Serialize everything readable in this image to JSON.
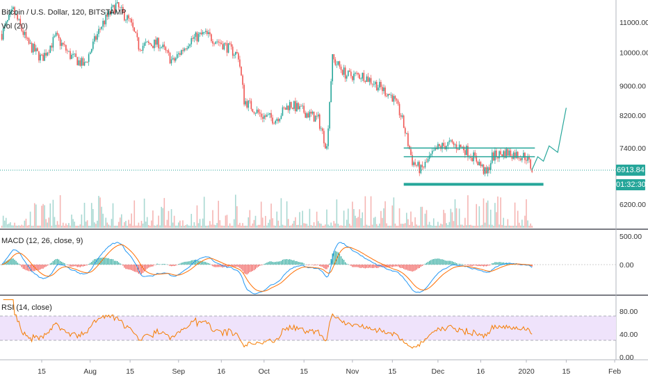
{
  "legend": {
    "symbol": "Bitcoin / U.S. Dollar, 120, BITSTAMP",
    "volume": "Vol (20)",
    "macd": "MACD (12, 26, close, 9)",
    "rsi": "RSI (14, close)"
  },
  "price_badge": {
    "value": "6913.84",
    "countdown": "01:32:30",
    "color": "#26a69a"
  },
  "colors": {
    "up": "#26a69a",
    "down": "#ef5350",
    "macd": "#2196f3",
    "signal": "#ff6d00",
    "rsi": "#f57c00",
    "rsi_band": "#e9dcf8"
  },
  "chart_data": [
    {
      "type": "candlestick",
      "title": "Bitcoin / U.S. Dollar, 120, BITSTAMP",
      "x_ticks": [
        "15",
        "Aug",
        "15",
        "Sep",
        "16",
        "Oct",
        "15",
        "Nov",
        "15",
        "Dec",
        "16",
        "2020",
        "15",
        "Feb"
      ],
      "y_ticks": [
        "11000.00",
        "10000.00",
        "9000.00",
        "8200.00",
        "7400.00",
        "6200.00"
      ],
      "ylim": [
        5900,
        11700
      ],
      "price_path": [
        [
          "Jul 1",
          10600
        ],
        [
          "Jul 5",
          11400
        ],
        [
          "Jul 10",
          10300
        ],
        [
          "Jul 15",
          9800
        ],
        [
          "Jul 20",
          10500
        ],
        [
          "Jul 25",
          9900
        ],
        [
          "Jul 30",
          9600
        ],
        [
          "Aug 5",
          10900
        ],
        [
          "Aug 10",
          11600
        ],
        [
          "Aug 15",
          11000
        ],
        [
          "Aug 18",
          10200
        ],
        [
          "Aug 25",
          10300
        ],
        [
          "Aug 30",
          9700
        ],
        [
          "Sep 5",
          10400
        ],
        [
          "Sep 10",
          10600
        ],
        [
          "Sep 16",
          10300
        ],
        [
          "Sep 22",
          9900
        ],
        [
          "Sep 24",
          8600
        ],
        [
          "Sep 30",
          8200
        ],
        [
          "Oct 5",
          8100
        ],
        [
          "Oct 10",
          8500
        ],
        [
          "Oct 15",
          8300
        ],
        [
          "Oct 20",
          8100
        ],
        [
          "Oct 23",
          7400
        ],
        [
          "Oct 25",
          9800
        ],
        [
          "Oct 30",
          9300
        ],
        [
          "Nov 5",
          9300
        ],
        [
          "Nov 10",
          9000
        ],
        [
          "Nov 15",
          8700
        ],
        [
          "Nov 18",
          8200
        ],
        [
          "Nov 22",
          7100
        ],
        [
          "Nov 25",
          6900
        ],
        [
          "Dec 1",
          7400
        ],
        [
          "Dec 5",
          7500
        ],
        [
          "Dec 10",
          7400
        ],
        [
          "Dec 15",
          7100
        ],
        [
          "Dec 18",
          6800
        ],
        [
          "Dec 20",
          7200
        ],
        [
          "Dec 25",
          7300
        ],
        [
          "Jan 1",
          7200
        ],
        [
          "Jan 3",
          6913.84
        ]
      ],
      "lines": [
        7400,
        7200
      ],
      "support": 6600,
      "projection": [
        [
          "Jan 3",
          6913.84
        ],
        [
          "Jan 5",
          7200
        ],
        [
          "Jan 7",
          7100
        ],
        [
          "Jan 9",
          7450
        ],
        [
          "Jan 12",
          7300
        ],
        [
          "Jan 15",
          8400
        ]
      ],
      "last_price": 6913.84
    },
    {
      "type": "line",
      "title": "MACD (12, 26, close, 9)",
      "y_ticks": [
        "500.00",
        "0.00"
      ],
      "series": [
        {
          "name": "MACD",
          "values_range": [
            -300,
            500
          ]
        },
        {
          "name": "Signal",
          "values_range": [
            -250,
            400
          ]
        }
      ]
    },
    {
      "type": "line",
      "title": "RSI (14, close)",
      "y_ticks": [
        "80.00",
        "40.00",
        "0.00"
      ],
      "band": [
        30,
        70
      ],
      "ylim": [
        0,
        100
      ]
    }
  ]
}
